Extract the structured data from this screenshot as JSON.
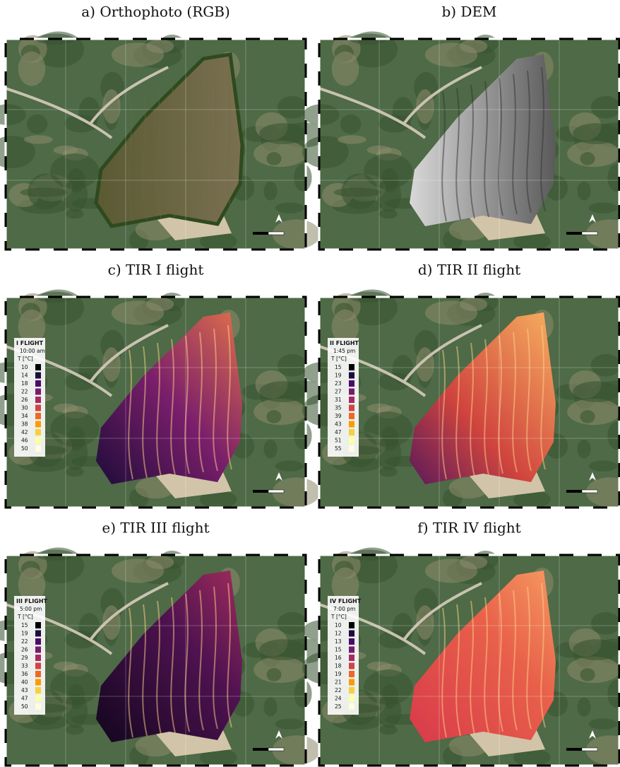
{
  "panels": [
    {
      "title": "a) Orthophoto (RGB)"
    },
    {
      "title": "b) DEM"
    },
    {
      "title": "c) TIR I flight",
      "legend": {
        "title": "I FLIGHT",
        "time": "10:00 am",
        "unit": "T [°C]",
        "values": [
          10,
          14,
          18,
          22,
          26,
          30,
          34,
          38,
          42,
          46,
          50
        ]
      }
    },
    {
      "title": "d) TIR II flight",
      "legend": {
        "title": "II FLIGHT",
        "time": "1:45 pm",
        "unit": "T [°C]",
        "values": [
          15,
          19,
          23,
          27,
          31,
          35,
          39,
          43,
          47,
          51,
          55
        ]
      }
    },
    {
      "title": "e) TIR III flight",
      "legend": {
        "title": "III FLIGHT",
        "time": "5:00 pm",
        "unit": "T [°C]",
        "values": [
          15,
          19,
          22,
          26,
          29,
          33,
          36,
          40,
          43,
          47,
          50
        ]
      }
    },
    {
      "title": "f) TIR IV flight",
      "legend": {
        "title": "IV FLIGHT",
        "time": "7:00 pm",
        "unit": "T [°C]",
        "values": [
          10,
          12,
          13,
          15,
          16,
          18,
          19,
          21,
          22,
          24,
          25
        ]
      }
    }
  ]
}
